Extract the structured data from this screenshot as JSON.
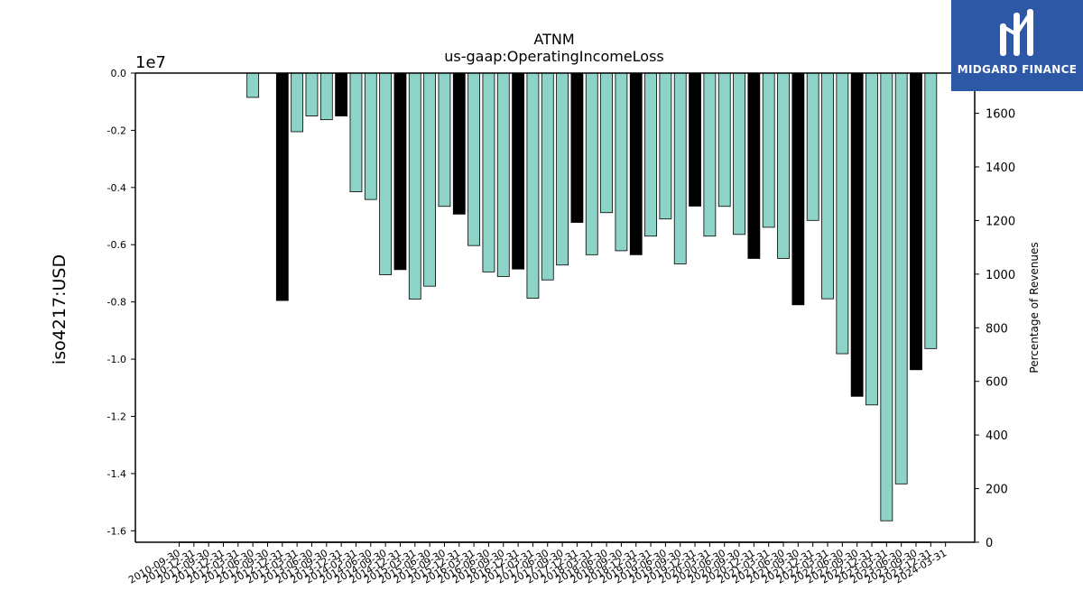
{
  "chart_data": {
    "type": "bar",
    "title": "ATNM",
    "subtitle": "us-gaap:OperatingIncomeLoss",
    "ylabel": "iso4217:USD",
    "y_offset_label": "1e7",
    "y2label": "Percentage of Revenues",
    "ylim": [
      -16400000.0,
      0
    ],
    "y2lim": [
      0,
      1750
    ],
    "yticks": [
      "0.0",
      "-0.2",
      "-0.4",
      "-0.6",
      "-0.8",
      "-1.0",
      "-1.2",
      "-1.4",
      "-1.6"
    ],
    "y2ticks": [
      "0",
      "200",
      "400",
      "600",
      "800",
      "1000",
      "1200",
      "1400",
      "1600"
    ],
    "grid": false,
    "colors": {
      "quarterly": "#8dd3c7",
      "annual": "#000000",
      "edge": "#000000"
    },
    "categories": [
      "2010-09-30",
      "2010-12-31",
      "2011-09-30",
      "2011-12-31",
      "2012-03-31",
      "2012-06-30",
      "2012-09-30",
      "2012-12-31",
      "2013-03-31",
      "2013-06-30",
      "2013-09-30",
      "2013-12-31",
      "2014-03-31",
      "2014-06-30",
      "2014-09-30",
      "2014-12-31",
      "2015-03-31",
      "2015-06-30",
      "2015-09-30",
      "2015-12-31",
      "2016-03-31",
      "2016-06-30",
      "2016-09-30",
      "2016-12-31",
      "2017-03-31",
      "2017-06-30",
      "2017-09-30",
      "2017-12-31",
      "2018-03-31",
      "2018-06-30",
      "2018-09-30",
      "2018-12-31",
      "2019-03-31",
      "2019-06-30",
      "2019-09-30",
      "2019-12-31",
      "2020-03-31",
      "2020-06-30",
      "2020-09-30",
      "2020-12-31",
      "2021-03-31",
      "2021-06-30",
      "2021-09-30",
      "2021-12-31",
      "2022-03-31",
      "2022-06-30",
      "2022-09-30",
      "2022-12-31",
      "2023-03-31",
      "2023-06-30",
      "2023-09-30",
      "2023-12-31",
      "2024-03-31"
    ],
    "series": [
      {
        "values": [
          null,
          null,
          null,
          null,
          null,
          -850000,
          null,
          -7950000,
          -2050000,
          -1500000,
          -1630000,
          -1500000,
          -4150000,
          -4420000,
          -7050000,
          -6870000,
          -7900000,
          -7450000,
          -4660000,
          -4930000,
          -6030000,
          -6950000,
          -7110000,
          -6850000,
          -7870000,
          -7230000,
          -6710000,
          -5220000,
          -6350000,
          -4880000,
          -6210000,
          -6350000,
          -5700000,
          -5100000,
          -6670000,
          -4650000,
          -5700000,
          -4660000,
          -5640000,
          -6480000,
          -5390000,
          -6480000,
          -8100000,
          -5150000,
          -7890000,
          -9810000,
          -11300000,
          -11600000,
          -15650000,
          -14360000,
          -10370000,
          -9630000,
          null
        ],
        "types": [
          "",
          "",
          "",
          "",
          "",
          "q",
          "",
          "a",
          "q",
          "q",
          "q",
          "a",
          "q",
          "q",
          "q",
          "a",
          "q",
          "q",
          "q",
          "a",
          "q",
          "q",
          "q",
          "a",
          "q",
          "q",
          "q",
          "a",
          "q",
          "q",
          "q",
          "a",
          "q",
          "q",
          "q",
          "a",
          "q",
          "q",
          "q",
          "a",
          "q",
          "q",
          "a",
          "q",
          "q",
          "q",
          "a",
          "q",
          "q",
          "q",
          "a",
          "q",
          ""
        ]
      },
      {
        "name": "Percentage of Revenues",
        "values": [
          0,
          0,
          0,
          0,
          0,
          0,
          0,
          0,
          0,
          0,
          0,
          0,
          0,
          0,
          0,
          0,
          0,
          0,
          0,
          0,
          0,
          0,
          0,
          0,
          0,
          0,
          0,
          0,
          0,
          0,
          0,
          0,
          0,
          0,
          0,
          0,
          0,
          0,
          0,
          0,
          0,
          0,
          null,
          null,
          null,
          null,
          null,
          0,
          0,
          0,
          0,
          0,
          null
        ],
        "axis": "right",
        "color": "#000000"
      }
    ]
  },
  "logo": {
    "text": "MIDGARD FINANCE"
  }
}
